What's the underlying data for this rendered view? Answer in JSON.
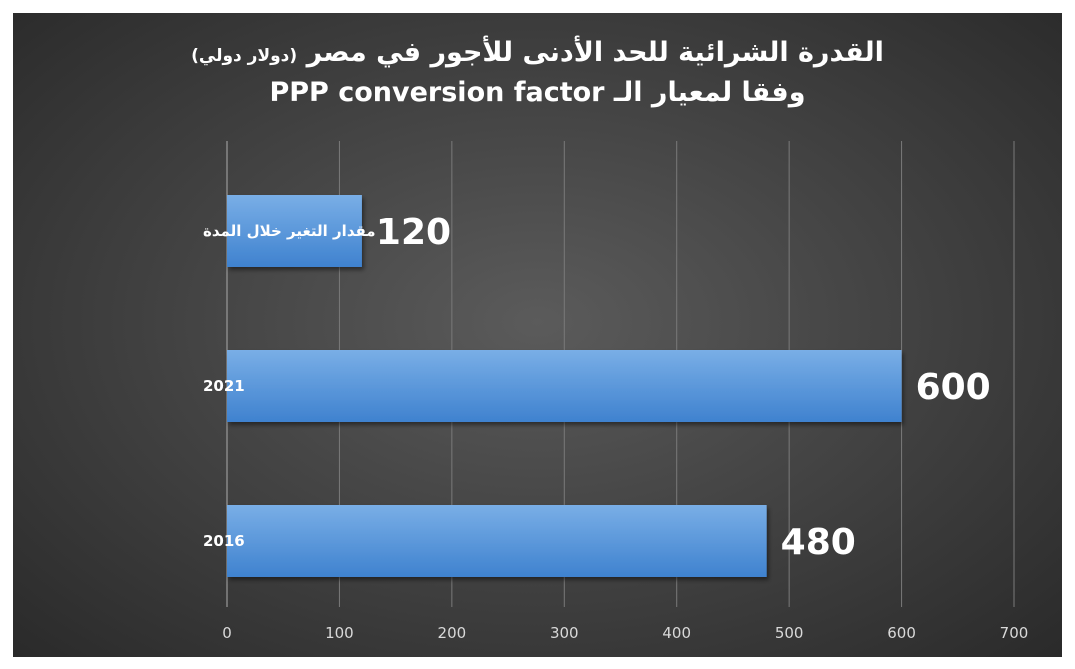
{
  "chart_data": {
    "type": "bar",
    "orientation": "horizontal",
    "title_main": "القدرة الشرائية للحد الأدنى للأجور في مصر",
    "title_sub": "(دولار دولي)",
    "title_line2": "وفقا لمعيار الـ PPP conversion factor",
    "categories": [
      "مقدار التغير خلال المدة",
      "2021",
      "2016"
    ],
    "values": [
      120,
      600,
      480
    ],
    "data_labels": [
      "120",
      "600",
      "480"
    ],
    "xlim": [
      0,
      700
    ],
    "xticks": [
      "0",
      "100",
      "200",
      "300",
      "400",
      "500",
      "600",
      "700"
    ],
    "grid": true,
    "legend": "none",
    "colors": {
      "bar_top": "#79aee6",
      "bar_bottom": "#3f82cf",
      "gridline": "#7a7a7a",
      "axis_line": "#9a9a9a"
    }
  }
}
